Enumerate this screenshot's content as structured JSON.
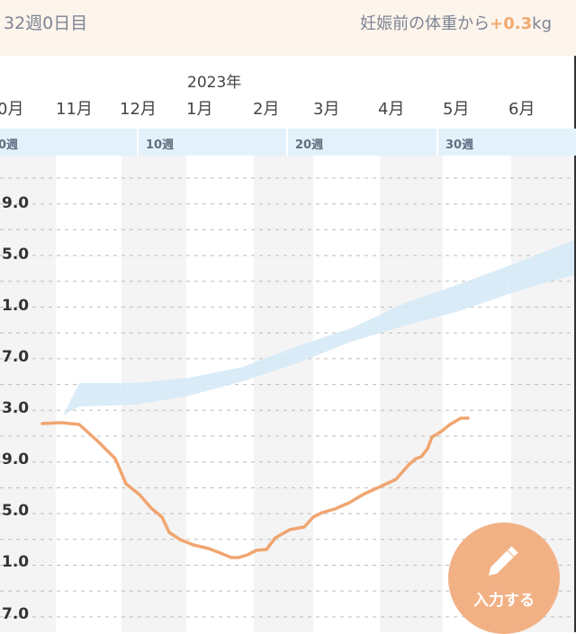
{
  "header": {
    "week_label": "32週0日目",
    "weight_diff_prefix": "妊娠前の体重から",
    "weight_diff_value": "+0.3",
    "weight_diff_unit": "kg"
  },
  "timeline": {
    "year_label": "2023年",
    "months": [
      "0月",
      "11月",
      "12月",
      "1月",
      "2月",
      "3月",
      "4月",
      "5月",
      "6月"
    ],
    "weeks": [
      "0週",
      "10週",
      "20週",
      "30週"
    ]
  },
  "y_axis_labels": [
    "9.0",
    "5.0",
    "1.0",
    "7.0",
    "3.0",
    "9.0",
    "5.0",
    "1.0",
    "7.0"
  ],
  "fab": {
    "label": "入力する",
    "icon": "pencil-icon"
  },
  "colors": {
    "weight_line": "#f0a570",
    "target_band": "#d3e9f7",
    "fab": "#f2b185",
    "accent_text": "#f2a96c"
  }
}
